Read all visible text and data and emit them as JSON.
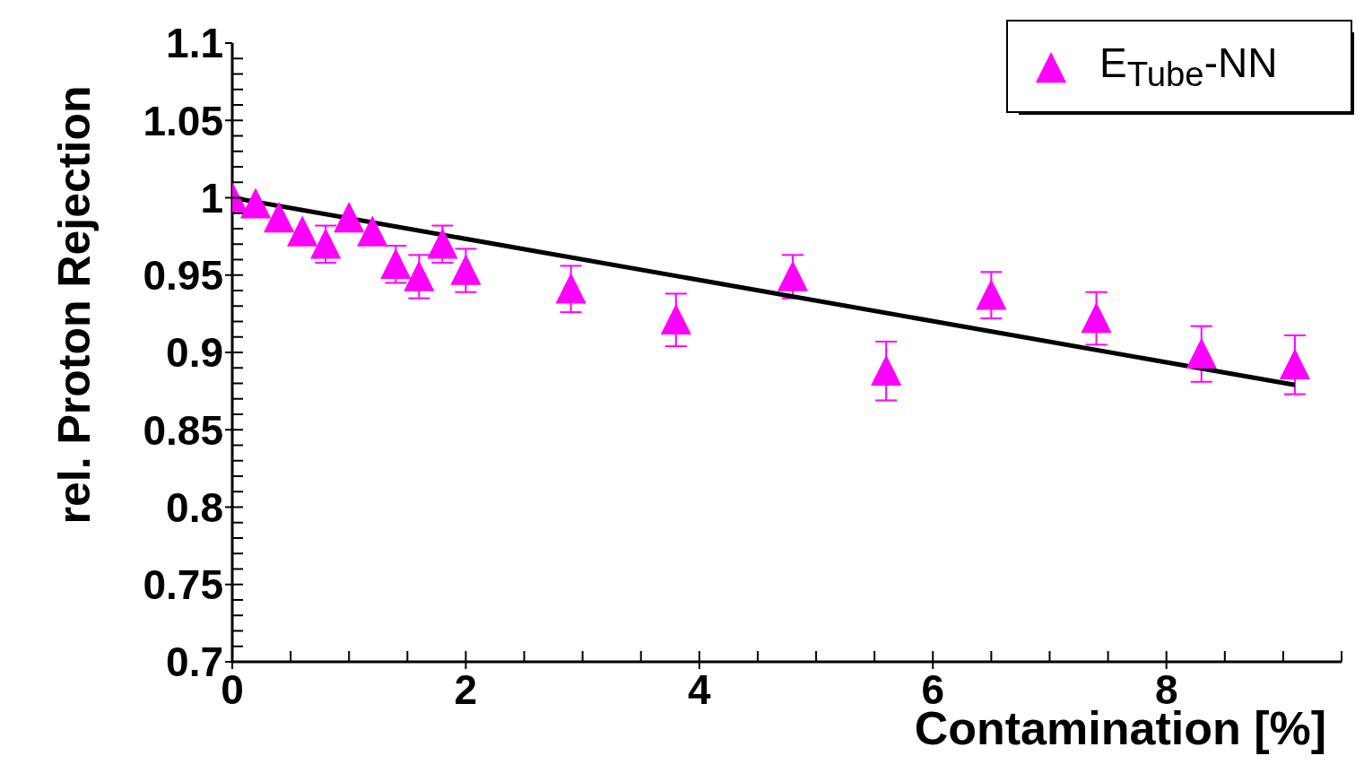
{
  "chart_data": {
    "type": "scatter",
    "xlabel": "Contamination [%]",
    "ylabel": "rel. Proton Rejection",
    "x": [
      0,
      0.2,
      0.4,
      0.6,
      0.8,
      1.0,
      1.2,
      1.4,
      1.6,
      1.8,
      2.0,
      2.9,
      3.8,
      4.8,
      5.6,
      6.5,
      7.4,
      8.3,
      9.1
    ],
    "series": [
      {
        "name": "E$_{Tube}$-NN",
        "color": "#ff00ff",
        "marker": "triangle",
        "values": [
          1.0,
          0.996,
          0.987,
          0.978,
          0.97,
          0.987,
          0.978,
          0.957,
          0.949,
          0.97,
          0.953,
          0.941,
          0.921,
          0.949,
          0.888,
          0.937,
          0.922,
          0.899,
          0.892
        ],
        "errors": [
          null,
          null,
          null,
          null,
          0.012,
          null,
          null,
          0.012,
          0.014,
          0.012,
          0.014,
          0.015,
          0.017,
          0.014,
          0.019,
          0.015,
          0.017,
          0.018,
          0.019
        ]
      },
      {
        "type": "line",
        "color": "#000000",
        "marker": "none",
        "x": [
          0,
          9.1
        ],
        "values": [
          1.0,
          0.879
        ]
      }
    ],
    "xlim": [
      0,
      9.5
    ],
    "xticks": [
      0,
      2,
      4,
      6,
      8
    ],
    "ylim": [
      0.7,
      1.1
    ],
    "yticks": [
      0.7,
      0.75,
      0.8,
      0.85,
      0.9,
      0.95,
      1,
      1.05,
      1.1
    ],
    "grid": false,
    "legend": "top right"
  }
}
